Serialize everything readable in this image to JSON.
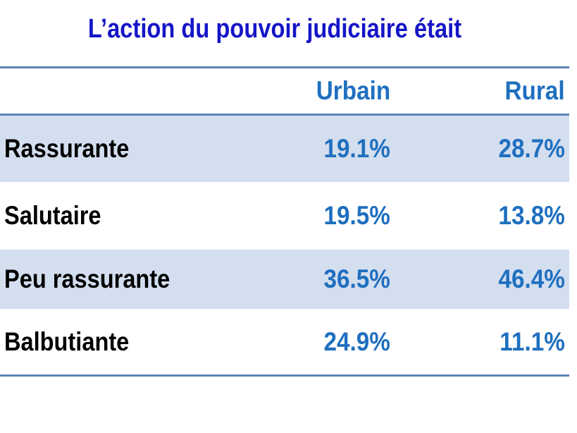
{
  "title": "L’action du pouvoir judiciaire était",
  "columns": [
    "",
    "Urbain",
    "Rural"
  ],
  "rows": [
    {
      "label": "Rassurante",
      "urbain": "19.1%",
      "rural": "28.7%"
    },
    {
      "label": "Salutaire",
      "urbain": "19.5%",
      "rural": "13.8%"
    },
    {
      "label": "Peu rassurante",
      "urbain": "36.5%",
      "rural": "46.4%"
    },
    {
      "label": "Balbutiante",
      "urbain": "24.9%",
      "rural": "11.1%"
    }
  ],
  "colors": {
    "title": "#1515c8",
    "value": "#1f6fbf",
    "band": "#d3deef",
    "rule": "#5b82b8"
  },
  "chart_data": {
    "type": "table",
    "title": "L’action du pouvoir judiciaire était",
    "columns": [
      "Urbain",
      "Rural"
    ],
    "categories": [
      "Rassurante",
      "Salutaire",
      "Peu rassurante",
      "Balbutiante"
    ],
    "series": [
      {
        "name": "Urbain",
        "values": [
          19.1,
          19.5,
          36.5,
          24.9
        ]
      },
      {
        "name": "Rural",
        "values": [
          28.7,
          13.8,
          46.4,
          11.1
        ]
      }
    ],
    "unit": "%"
  }
}
